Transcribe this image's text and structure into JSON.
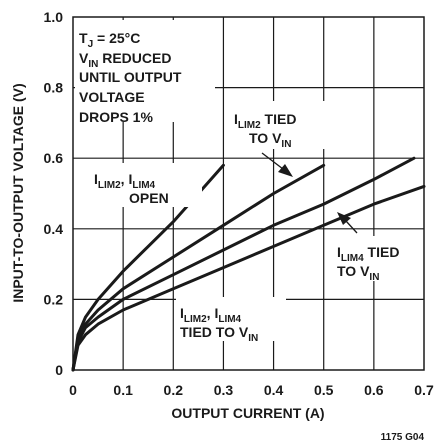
{
  "chart_data": {
    "type": "line",
    "title": "",
    "xlabel": "OUTPUT CURRENT (A)",
    "ylabel": "INPUT-TO-OUTPUT VOLTAGE (V)",
    "xlim": [
      0,
      0.7
    ],
    "ylim": [
      0,
      1.0
    ],
    "x_ticks": [
      "0",
      "0.1",
      "0.2",
      "0.3",
      "0.4",
      "0.5",
      "0.6",
      "0.7"
    ],
    "y_ticks": [
      "0",
      "0.2",
      "0.4",
      "0.6",
      "0.8",
      "1.0"
    ],
    "grid": true,
    "legend": "none",
    "series": [
      {
        "name": "ILIM2, ILIM4 OPEN",
        "x": [
          0,
          0.01,
          0.025,
          0.05,
          0.1,
          0.15,
          0.2,
          0.25,
          0.3
        ],
        "y": [
          0,
          0.1,
          0.15,
          0.2,
          0.28,
          0.35,
          0.42,
          0.5,
          0.58
        ]
      },
      {
        "name": "ILIM2 TIED TO VIN",
        "x": [
          0,
          0.01,
          0.025,
          0.05,
          0.1,
          0.2,
          0.3,
          0.4,
          0.5
        ],
        "y": [
          0,
          0.09,
          0.13,
          0.17,
          0.23,
          0.32,
          0.41,
          0.5,
          0.58
        ]
      },
      {
        "name": "ILIM4 TIED TO VIN",
        "x": [
          0,
          0.01,
          0.025,
          0.05,
          0.1,
          0.2,
          0.3,
          0.4,
          0.5,
          0.6,
          0.68
        ],
        "y": [
          0,
          0.08,
          0.12,
          0.15,
          0.2,
          0.27,
          0.34,
          0.41,
          0.47,
          0.54,
          0.6
        ]
      },
      {
        "name": "ILIM2, ILIM4 TIED TO VIN",
        "x": [
          0,
          0.01,
          0.025,
          0.05,
          0.1,
          0.2,
          0.3,
          0.4,
          0.5,
          0.6,
          0.7
        ],
        "y": [
          0,
          0.07,
          0.1,
          0.13,
          0.17,
          0.23,
          0.29,
          0.35,
          0.41,
          0.47,
          0.52
        ]
      }
    ],
    "annotations": {
      "conditions": [
        "TJ = 25°C",
        "VIN REDUCED",
        "UNTIL OUTPUT",
        "VOLTAGE",
        "DROPS 1%"
      ],
      "open_label": [
        "ILIM2, ILIM4",
        "OPEN"
      ],
      "ilim2_label": [
        "ILIM2 TIED",
        "TO VIN"
      ],
      "ilim4_label": [
        "ILIM4 TIED",
        "TO VIN"
      ],
      "both_label": [
        "ILIM2, ILIM4",
        "TIED TO VIN"
      ]
    },
    "figure_code": "1175 G04",
    "colors": {
      "line": "#1a1a1a",
      "grid": "#1a1a1a",
      "background": "#ffffff"
    }
  }
}
